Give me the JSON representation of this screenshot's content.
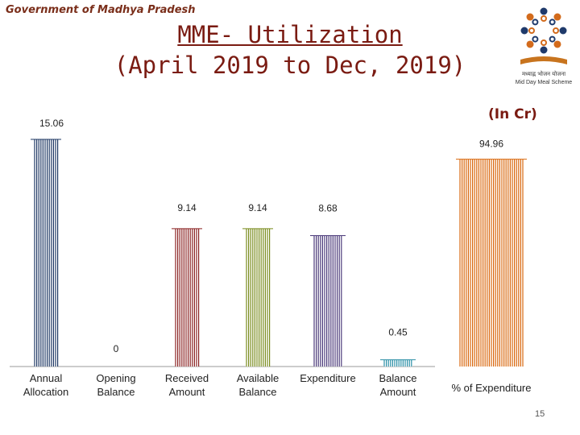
{
  "header": {
    "org": "Government of Madhya Pradesh",
    "title_line1": "MME- Utilization",
    "title_line2": "(April 2019 to Dec, 2019)",
    "unit": "(In Cr)",
    "slide_number": "15"
  },
  "logo": {
    "caption_line1": "मध्याह्न भोजन योजना",
    "caption_line2": "Mid Day Meal Scheme"
  },
  "chart_data": {
    "type": "bar",
    "title": "MME- Utilization (April 2019 to Dec, 2019)",
    "unit": "(In Cr)",
    "categories": [
      "Annual Allocation",
      "Opening Balance",
      "Received Amount",
      "Available Balance",
      "Expenditure",
      "Balance Amount",
      "% of Expenditure"
    ],
    "category_lines": [
      [
        "Annual",
        "Allocation"
      ],
      [
        "Opening",
        "Balance"
      ],
      [
        "Received",
        "Amount"
      ],
      [
        "Available",
        "Balance"
      ],
      [
        "Expenditure"
      ],
      [
        "Balance",
        "Amount"
      ],
      [
        "% of Expenditure"
      ]
    ],
    "values": [
      15.06,
      0,
      9.14,
      9.14,
      8.68,
      0.45,
      94.96
    ],
    "value_labels": [
      "15.06",
      "0",
      "9.14",
      "9.14",
      "8.68",
      "0.45",
      "94.96"
    ],
    "colors": [
      "#1f3864",
      "#333333",
      "#8b2323",
      "#7a8c1e",
      "#4b3a7a",
      "#2b8fa6",
      "#d9680e"
    ],
    "legend": "none",
    "grid": false
  }
}
